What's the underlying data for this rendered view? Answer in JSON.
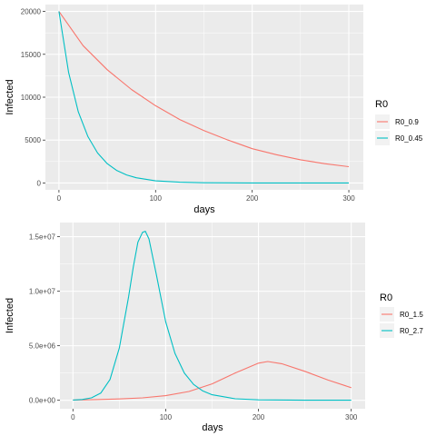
{
  "chart_data": [
    {
      "type": "line",
      "xlabel": "days",
      "ylabel": "Infected",
      "xlim": [
        -14,
        315
      ],
      "ylim": [
        -800,
        20800
      ],
      "x_ticks": [
        0,
        100,
        200,
        300
      ],
      "x_tick_labels": [
        "0",
        "100",
        "200",
        "300"
      ],
      "y_ticks": [
        0,
        5000,
        10000,
        15000,
        20000
      ],
      "y_tick_labels": [
        "0",
        "5000",
        "10000",
        "15000",
        "20000"
      ],
      "grid": true,
      "legend": {
        "title": "R0",
        "position": "right"
      },
      "series": [
        {
          "name": "R0_0.9",
          "color": "#F8766D",
          "x": [
            0,
            25,
            50,
            75,
            100,
            125,
            150,
            175,
            200,
            225,
            250,
            275,
            300
          ],
          "values": [
            20000,
            16000,
            13200,
            10900,
            9000,
            7400,
            6100,
            5000,
            4000,
            3300,
            2700,
            2250,
            1900
          ]
        },
        {
          "name": "R0_0.45",
          "color": "#00BFC4",
          "x": [
            0,
            10,
            20,
            30,
            40,
            50,
            60,
            70,
            80,
            100,
            125,
            150,
            200,
            250,
            300
          ],
          "values": [
            20000,
            12900,
            8300,
            5400,
            3500,
            2250,
            1450,
            940,
            610,
            250,
            85,
            30,
            4,
            0,
            0
          ]
        }
      ]
    },
    {
      "type": "line",
      "xlabel": "days",
      "ylabel": "Infected",
      "xlim": [
        -14,
        315
      ],
      "ylim": [
        -780000,
        16300000
      ],
      "x_ticks": [
        0,
        100,
        200,
        300
      ],
      "x_tick_labels": [
        "0",
        "100",
        "200",
        "300"
      ],
      "y_ticks": [
        0,
        5000000,
        10000000,
        15000000
      ],
      "y_tick_labels": [
        "0.0e+00",
        "5.0e+06",
        "1.0e+07",
        "1.5e+07"
      ],
      "grid": true,
      "legend": {
        "title": "R0",
        "position": "right"
      },
      "series": [
        {
          "name": "R0_1.5",
          "color": "#F8766D",
          "x": [
            0,
            25,
            50,
            75,
            100,
            125,
            150,
            175,
            200,
            210,
            225,
            250,
            275,
            300
          ],
          "values": [
            20000,
            60000,
            120000,
            220000,
            420000,
            800000,
            1500000,
            2500000,
            3400000,
            3550000,
            3350000,
            2650000,
            1850000,
            1150000
          ]
        },
        {
          "name": "R0_2.7",
          "color": "#00BFC4",
          "x": [
            0,
            10,
            20,
            30,
            40,
            50,
            60,
            65,
            70,
            75,
            78,
            82,
            90,
            100,
            110,
            120,
            130,
            140,
            150,
            175,
            200,
            250,
            300
          ],
          "values": [
            20000,
            70000,
            220000,
            650000,
            1900000,
            4800000,
            9500000,
            12200000,
            14500000,
            15400000,
            15500000,
            14800000,
            11500000,
            7200000,
            4300000,
            2500000,
            1450000,
            850000,
            500000,
            140000,
            40000,
            5000,
            1000
          ]
        }
      ]
    }
  ]
}
